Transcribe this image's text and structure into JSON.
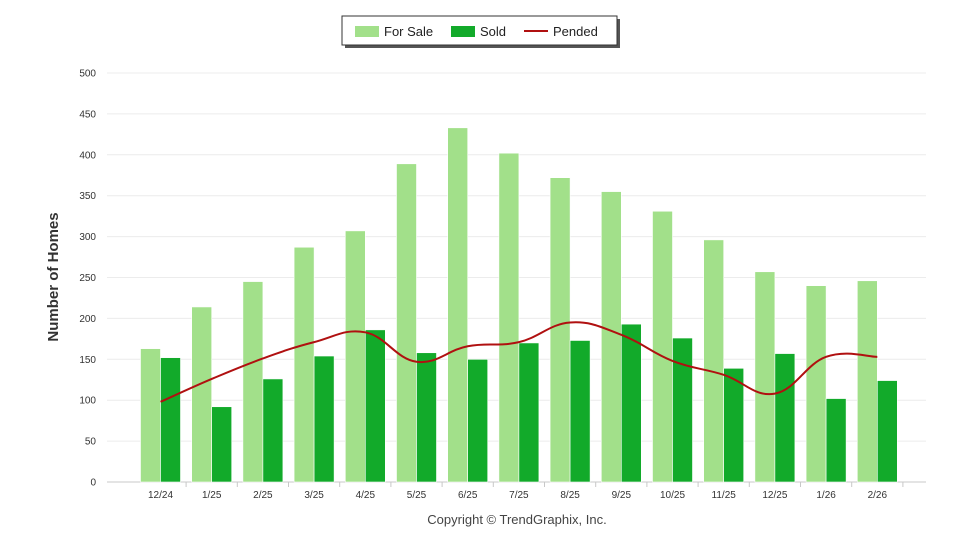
{
  "chart_data": {
    "type": "bar",
    "categories": [
      "12/24",
      "1/25",
      "2/25",
      "3/25",
      "4/25",
      "5/25",
      "6/25",
      "7/25",
      "8/25",
      "9/25",
      "10/25",
      "11/25",
      "12/25",
      "1/26",
      "2/26"
    ],
    "series": [
      {
        "name": "For Sale",
        "type": "bar",
        "color": "#a2e08a",
        "values": [
          163,
          214,
          245,
          287,
          307,
          389,
          433,
          402,
          372,
          355,
          331,
          296,
          257,
          240,
          246
        ]
      },
      {
        "name": "Sold",
        "type": "bar",
        "color": "#12aa2a",
        "values": [
          152,
          92,
          126,
          154,
          186,
          158,
          150,
          170,
          173,
          193,
          176,
          139,
          157,
          102,
          124
        ]
      },
      {
        "name": "Pended",
        "type": "line",
        "color": "#b01010",
        "values": [
          98,
          126,
          151,
          171,
          183,
          147,
          166,
          171,
          195,
          180,
          148,
          131,
          108,
          153,
          153
        ]
      }
    ],
    "ylabel": "Number of Homes",
    "xlabel": "",
    "ylim": [
      0,
      500
    ],
    "yticks": [
      0,
      50,
      100,
      150,
      200,
      250,
      300,
      350,
      400,
      450,
      500
    ],
    "grid": true,
    "legend_position": "top-center",
    "credit": "Copyright © TrendGraphix, Inc."
  }
}
